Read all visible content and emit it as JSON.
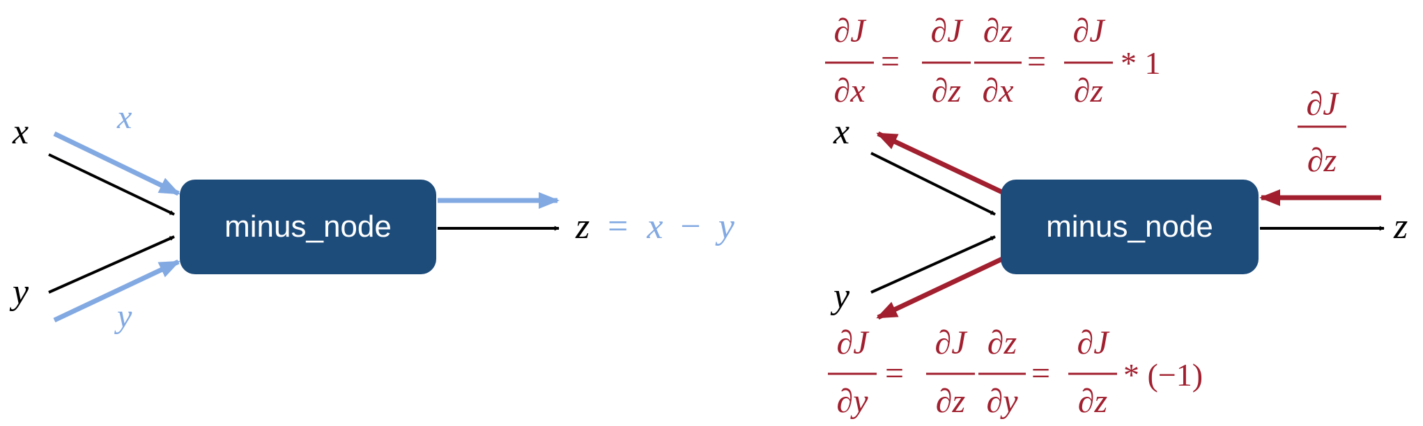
{
  "colors": {
    "node_fill": "#1d4c7b",
    "forward": "#82a9e2",
    "backward": "#a11f2e",
    "edge": "#000000",
    "node_text": "#ffffff"
  },
  "forward_panel": {
    "node_label": "minus_node",
    "input_x": "x",
    "input_y": "y",
    "flow_x": "x",
    "flow_y": "y",
    "output": "z",
    "output_expr": {
      "eq": "=",
      "a": "x",
      "minus": "−",
      "b": "y"
    }
  },
  "backward_panel": {
    "node_label": "minus_node",
    "input_x": "x",
    "input_y": "y",
    "output": "z",
    "upstream_grad": {
      "num": "∂J",
      "den": "∂z"
    },
    "grad_x": {
      "lhs": {
        "num": "∂J",
        "den": "∂x"
      },
      "eq1": "=",
      "f1": {
        "num": "∂J",
        "den": "∂z"
      },
      "f2": {
        "num": "∂z",
        "den": "∂x"
      },
      "eq2": "=",
      "f3": {
        "num": "∂J",
        "den": "∂z"
      },
      "tail": "* 1"
    },
    "grad_y": {
      "lhs": {
        "num": "∂J",
        "den": "∂y"
      },
      "eq1": "=",
      "f1": {
        "num": "∂J",
        "den": "∂z"
      },
      "f2": {
        "num": "∂z",
        "den": "∂y"
      },
      "eq2": "=",
      "f3": {
        "num": "∂J",
        "den": "∂z"
      },
      "tail": "* (−1)"
    }
  }
}
